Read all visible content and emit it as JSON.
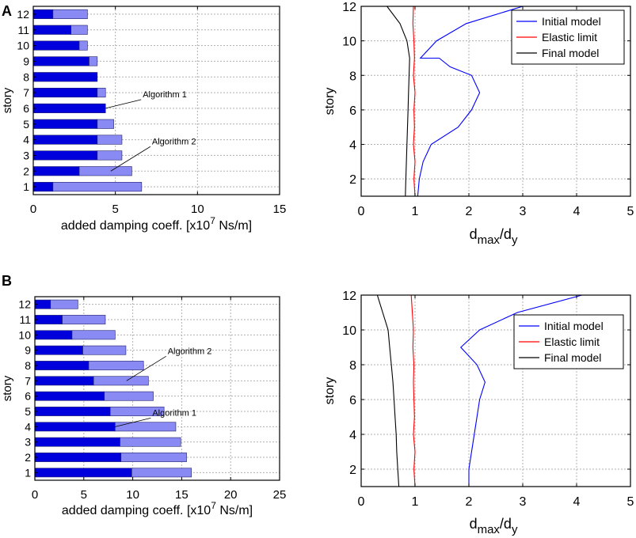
{
  "panels": [
    {
      "label": "A"
    },
    {
      "label": "B"
    }
  ],
  "chart_data": [
    {
      "id": "A-bar",
      "panel": "A",
      "type": "bar",
      "orientation": "horizontal",
      "stacked": true,
      "categories": [
        "1",
        "2",
        "3",
        "4",
        "5",
        "6",
        "7",
        "8",
        "9",
        "10",
        "11",
        "12"
      ],
      "series": [
        {
          "name": "Algorithm 1",
          "values": [
            1.2,
            2.8,
            3.9,
            3.9,
            3.9,
            4.4,
            3.9,
            3.9,
            3.4,
            2.8,
            2.3,
            1.2
          ],
          "color": "#0000dd"
        },
        {
          "name": "Algorithm 2",
          "values": [
            5.4,
            3.2,
            1.5,
            1.5,
            1.0,
            0.0,
            0.5,
            0.0,
            0.5,
            0.5,
            1.0,
            2.1
          ],
          "color": "#8a8af5"
        }
      ],
      "annotations": [
        {
          "text": "Algorithm 1",
          "target_series": "Algorithm 1",
          "target_category": "6"
        },
        {
          "text": "Algorithm 2",
          "target_series": "Algorithm 2",
          "target_category": "2"
        }
      ],
      "xlabel": "added damping coeff. [x10",
      "xlabel_sup": "7",
      "xlabel_tail": " Ns/m]",
      "ylabel": "story",
      "xlim": [
        0,
        15
      ],
      "xticks": [
        0,
        5,
        10,
        15
      ],
      "grid": true
    },
    {
      "id": "A-line",
      "panel": "A",
      "type": "line",
      "series": [
        {
          "name": "Initial model",
          "color": "#0000ff",
          "x": [
            1.05,
            1.08,
            1.15,
            1.3,
            1.8,
            2.05,
            2.2,
            2.05,
            1.65,
            1.45,
            1.1,
            1.4,
            1.95,
            3.0
          ],
          "y": [
            1,
            2,
            3,
            4,
            5,
            6,
            7,
            8,
            8.5,
            9,
            9,
            10,
            11,
            12
          ]
        },
        {
          "name": "Elastic limit",
          "color": "#ff0000",
          "x": [
            1.0,
            0.98,
            1.0,
            0.97,
            0.99,
            0.98,
            1.0,
            0.97,
            0.99,
            0.98,
            0.96,
            0.97
          ],
          "y": [
            1,
            2,
            3,
            4,
            5,
            6,
            7,
            8,
            9,
            10,
            11,
            12
          ]
        },
        {
          "name": "Final model",
          "color": "#000000",
          "x": [
            0.82,
            0.83,
            0.84,
            0.85,
            0.86,
            0.87,
            0.88,
            0.89,
            0.9,
            0.85,
            0.72,
            0.48
          ],
          "y": [
            1,
            2,
            3,
            4,
            5,
            6,
            7,
            8,
            9,
            10,
            11,
            12
          ]
        }
      ],
      "xlabel": "d",
      "xlabel_sub1": "max",
      "xlabel_mid": "/d",
      "xlabel_sub2": "y",
      "ylabel": "story",
      "xlim": [
        0,
        5
      ],
      "ylim": [
        1,
        12
      ],
      "xticks": [
        0,
        1,
        2,
        3,
        4,
        5
      ],
      "yticks": [
        2,
        4,
        6,
        8,
        10,
        12
      ],
      "legend": "top-right",
      "grid": true
    },
    {
      "id": "B-bar",
      "panel": "B",
      "type": "bar",
      "orientation": "horizontal",
      "stacked": true,
      "categories": [
        "1",
        "2",
        "3",
        "4",
        "5",
        "6",
        "7",
        "8",
        "9",
        "10",
        "11",
        "12"
      ],
      "series": [
        {
          "name": "Algorithm 1",
          "values": [
            9.9,
            8.8,
            8.7,
            8.2,
            7.7,
            7.1,
            6.0,
            5.5,
            4.9,
            3.8,
            2.8,
            1.6
          ],
          "color": "#0000dd"
        },
        {
          "name": "Algorithm 2",
          "values": [
            6.1,
            6.7,
            6.2,
            6.2,
            5.5,
            5.0,
            5.6,
            5.6,
            4.4,
            4.4,
            4.4,
            2.8
          ],
          "color": "#8a8af5"
        }
      ],
      "annotations": [
        {
          "text": "Algorithm 2",
          "target_series": "Algorithm 2",
          "target_category": "7"
        },
        {
          "text": "Algorithm 1",
          "target_series": "Algorithm 1",
          "target_category": "4"
        }
      ],
      "xlabel": "added damping coeff. [x10",
      "xlabel_sup": "7",
      "xlabel_tail": " Ns/m]",
      "ylabel": "story",
      "xlim": [
        0,
        25
      ],
      "xticks": [
        0,
        5,
        10,
        15,
        20,
        25
      ],
      "grid": true
    },
    {
      "id": "B-line",
      "panel": "B",
      "type": "line",
      "series": [
        {
          "name": "Initial model",
          "color": "#0000ff",
          "x": [
            2.0,
            2.0,
            2.05,
            2.1,
            2.15,
            2.2,
            2.3,
            2.15,
            1.85,
            2.2,
            2.9,
            4.1
          ],
          "y": [
            1,
            2,
            3,
            4,
            5,
            6,
            7,
            8,
            9,
            10,
            11,
            12
          ]
        },
        {
          "name": "Elastic limit",
          "color": "#ff0000",
          "x": [
            1.0,
            0.98,
            1.0,
            0.97,
            0.99,
            0.98,
            0.97,
            0.98,
            0.96,
            0.97,
            0.95,
            0.93
          ],
          "y": [
            1,
            2,
            3,
            4,
            5,
            6,
            7,
            8,
            9,
            10,
            11,
            12
          ]
        },
        {
          "name": "Final model",
          "color": "#000000",
          "x": [
            0.7,
            0.68,
            0.66,
            0.65,
            0.63,
            0.61,
            0.59,
            0.56,
            0.53,
            0.5,
            0.4,
            0.3
          ],
          "y": [
            1,
            2,
            3,
            4,
            5,
            6,
            7,
            8,
            9,
            10,
            11,
            12
          ]
        }
      ],
      "xlabel": "d",
      "xlabel_sub1": "max",
      "xlabel_mid": "/d",
      "xlabel_sub2": "y",
      "ylabel": "story",
      "xlim": [
        0,
        5
      ],
      "ylim": [
        1,
        12
      ],
      "xticks": [
        0,
        1,
        2,
        3,
        4,
        5
      ],
      "yticks": [
        2,
        4,
        6,
        8,
        10,
        12
      ],
      "legend": "right",
      "grid": true
    }
  ]
}
